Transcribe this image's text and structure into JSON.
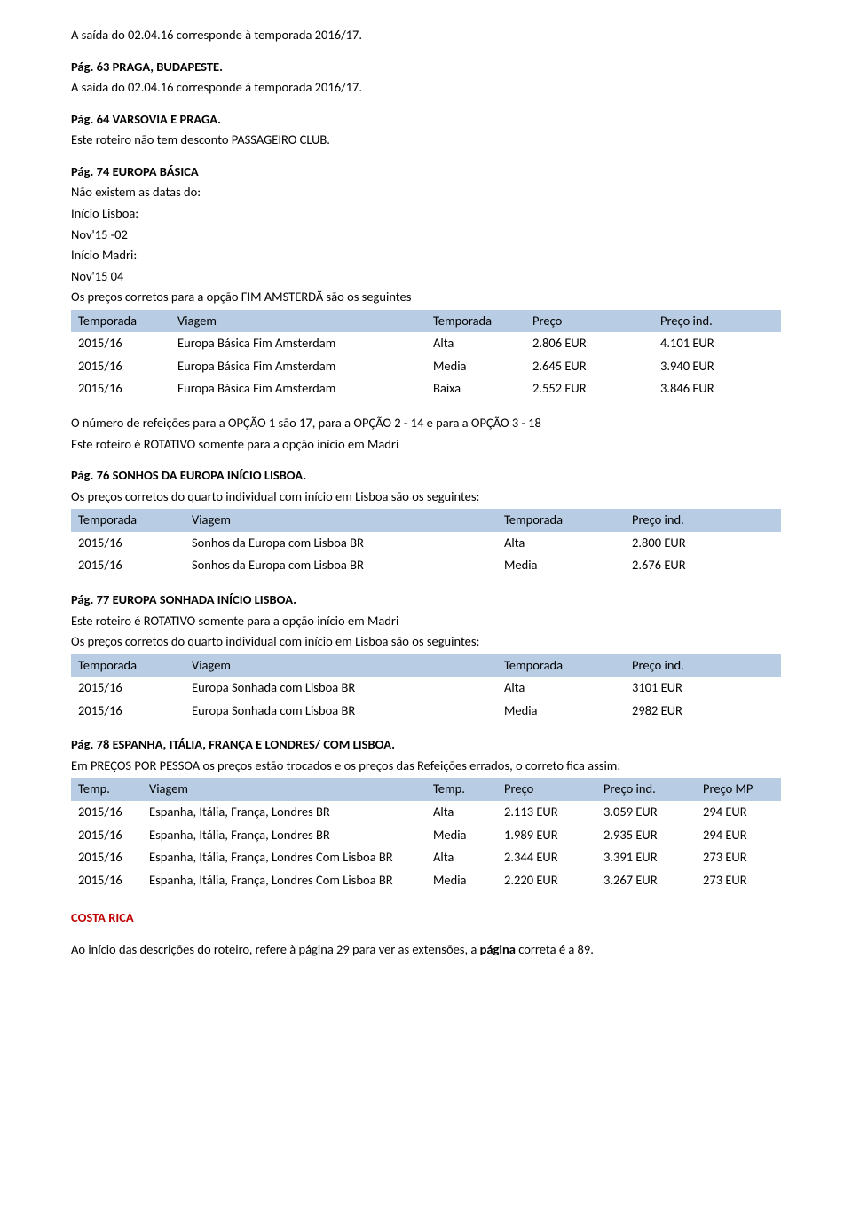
{
  "styling": {
    "table": {
      "header_background": "#b8cce4",
      "header_fontweight": "normal",
      "body_background": "#ffffff",
      "text_color": "#000000",
      "fontsize": 14.5,
      "padding": "3px 10px 3px 8px"
    },
    "body": {
      "font_family": "Calibri, Arial, sans-serif",
      "fontsize": 14.5,
      "text_color": "#000000",
      "line_height": 1.35
    },
    "costa_rica": {
      "color": "#c00000",
      "fontweight": "bold",
      "underline": true
    },
    "pagina_bold": {
      "fontweight": "bold"
    }
  },
  "p1_line1": "A saída do 02.04.16 corresponde à temporada 2016/17.",
  "s63_title": "Pág. 63 PRAGA, BUDAPESTE.",
  "s63_line1": "A saída do 02.04.16 corresponde à temporada 2016/17.",
  "s64_title": "Pág. 64 VARSOVIA E PRAGA.",
  "s64_line1": "Este roteiro não tem desconto PASSAGEIRO CLUB.",
  "s74_title": "Pág. 74 EUROPA BÁSICA",
  "s74_line1": "Não existem as datas do:",
  "s74_line2": "Início Lisboa:",
  "s74_line3": "Nov'15 -02",
  "s74_line4": "Início Madri:",
  "s74_line5": "Nov'15 04",
  "s74_line6": "Os preços corretos para a opção FIM AMSTERDÃ são os seguintes",
  "s74_table": {
    "type": "table",
    "columns": [
      "Temporada",
      "Viagem",
      "Temporada",
      "Preço",
      "Preço ind."
    ],
    "rows": [
      [
        "2015/16",
        "Europa Básica Fim Amsterdam",
        "Alta",
        "2.806 EUR",
        "4.101 EUR"
      ],
      [
        "2015/16",
        "Europa Básica Fim Amsterdam",
        "Media",
        "2.645 EUR",
        "3.940 EUR"
      ],
      [
        "2015/16",
        "Europa Básica Fim Amsterdam",
        "Baixa",
        "2.552 EUR",
        "3.846 EUR"
      ]
    ]
  },
  "s74_note1": "O número de refeições para a OPÇÃO 1 são 17, para a OPÇÃO 2 - 14 e para a OPÇÃO 3 - 18",
  "s74_note2": "Este roteiro é ROTATIVO somente para a opção início em Madri",
  "s76_title": "Pág. 76 SONHOS DA EUROPA INÍCIO LISBOA.",
  "s76_line1": "Os preços corretos do quarto individual com início em Lisboa são os seguintes:",
  "s76_table": {
    "type": "table",
    "columns": [
      "Temporada",
      "Viagem",
      "Temporada",
      "Preço ind."
    ],
    "rows": [
      [
        "2015/16",
        "Sonhos da Europa com Lisboa BR",
        "Alta",
        "2.800 EUR"
      ],
      [
        "2015/16",
        "Sonhos da Europa com Lisboa BR",
        "Media",
        "2.676 EUR"
      ]
    ]
  },
  "s77_title": "Pág. 77 EUROPA SONHADA INÍCIO LISBOA.",
  "s77_line1": "Este roteiro é ROTATIVO somente para a opção início em Madri",
  "s77_line2": "Os preços corretos do quarto individual com início em Lisboa são os seguintes:",
  "s77_table": {
    "type": "table",
    "columns": [
      "Temporada",
      "Viagem",
      "Temporada",
      "Preço ind."
    ],
    "rows": [
      [
        "2015/16",
        "Europa Sonhada com Lisboa BR",
        "Alta",
        "3101 EUR"
      ],
      [
        "2015/16",
        "Europa Sonhada com Lisboa BR",
        "Media",
        "2982 EUR"
      ]
    ]
  },
  "s78_title": "Pág. 78 ESPANHA, ITÁLIA, FRANÇA E LONDRES/ COM LISBOA.",
  "s78_line1": "Em PREÇOS POR PESSOA os preços estão trocados e os preços das Refeições errados, o correto fica assim:",
  "s78_table": {
    "type": "table",
    "columns": [
      "Temp.",
      "Viagem",
      "Temp.",
      "Preço",
      "Preço ind.",
      "Preço MP"
    ],
    "rows": [
      [
        "2015/16",
        "Espanha, Itália, França, Londres BR",
        "Alta",
        "2.113 EUR",
        "3.059 EUR",
        "294 EUR"
      ],
      [
        "2015/16",
        "Espanha, Itália, França, Londres BR",
        "Media",
        "1.989 EUR",
        "2.935 EUR",
        "294 EUR"
      ],
      [
        "2015/16",
        "Espanha, Itália, França, Londres Com Lisboa BR",
        "Alta",
        "2.344 EUR",
        "3.391 EUR",
        "273 EUR"
      ],
      [
        "2015/16",
        "Espanha, Itália, França, Londres Com Lisboa BR",
        "Media",
        "2.220 EUR",
        "3.267 EUR",
        "273 EUR"
      ]
    ]
  },
  "costa_title": "COSTA RICA",
  "final_prefix": "Ao início das descrições do roteiro, refere à página 29 para ver as extensões, a ",
  "final_bold": "página",
  "final_suffix": " correta é a 89."
}
